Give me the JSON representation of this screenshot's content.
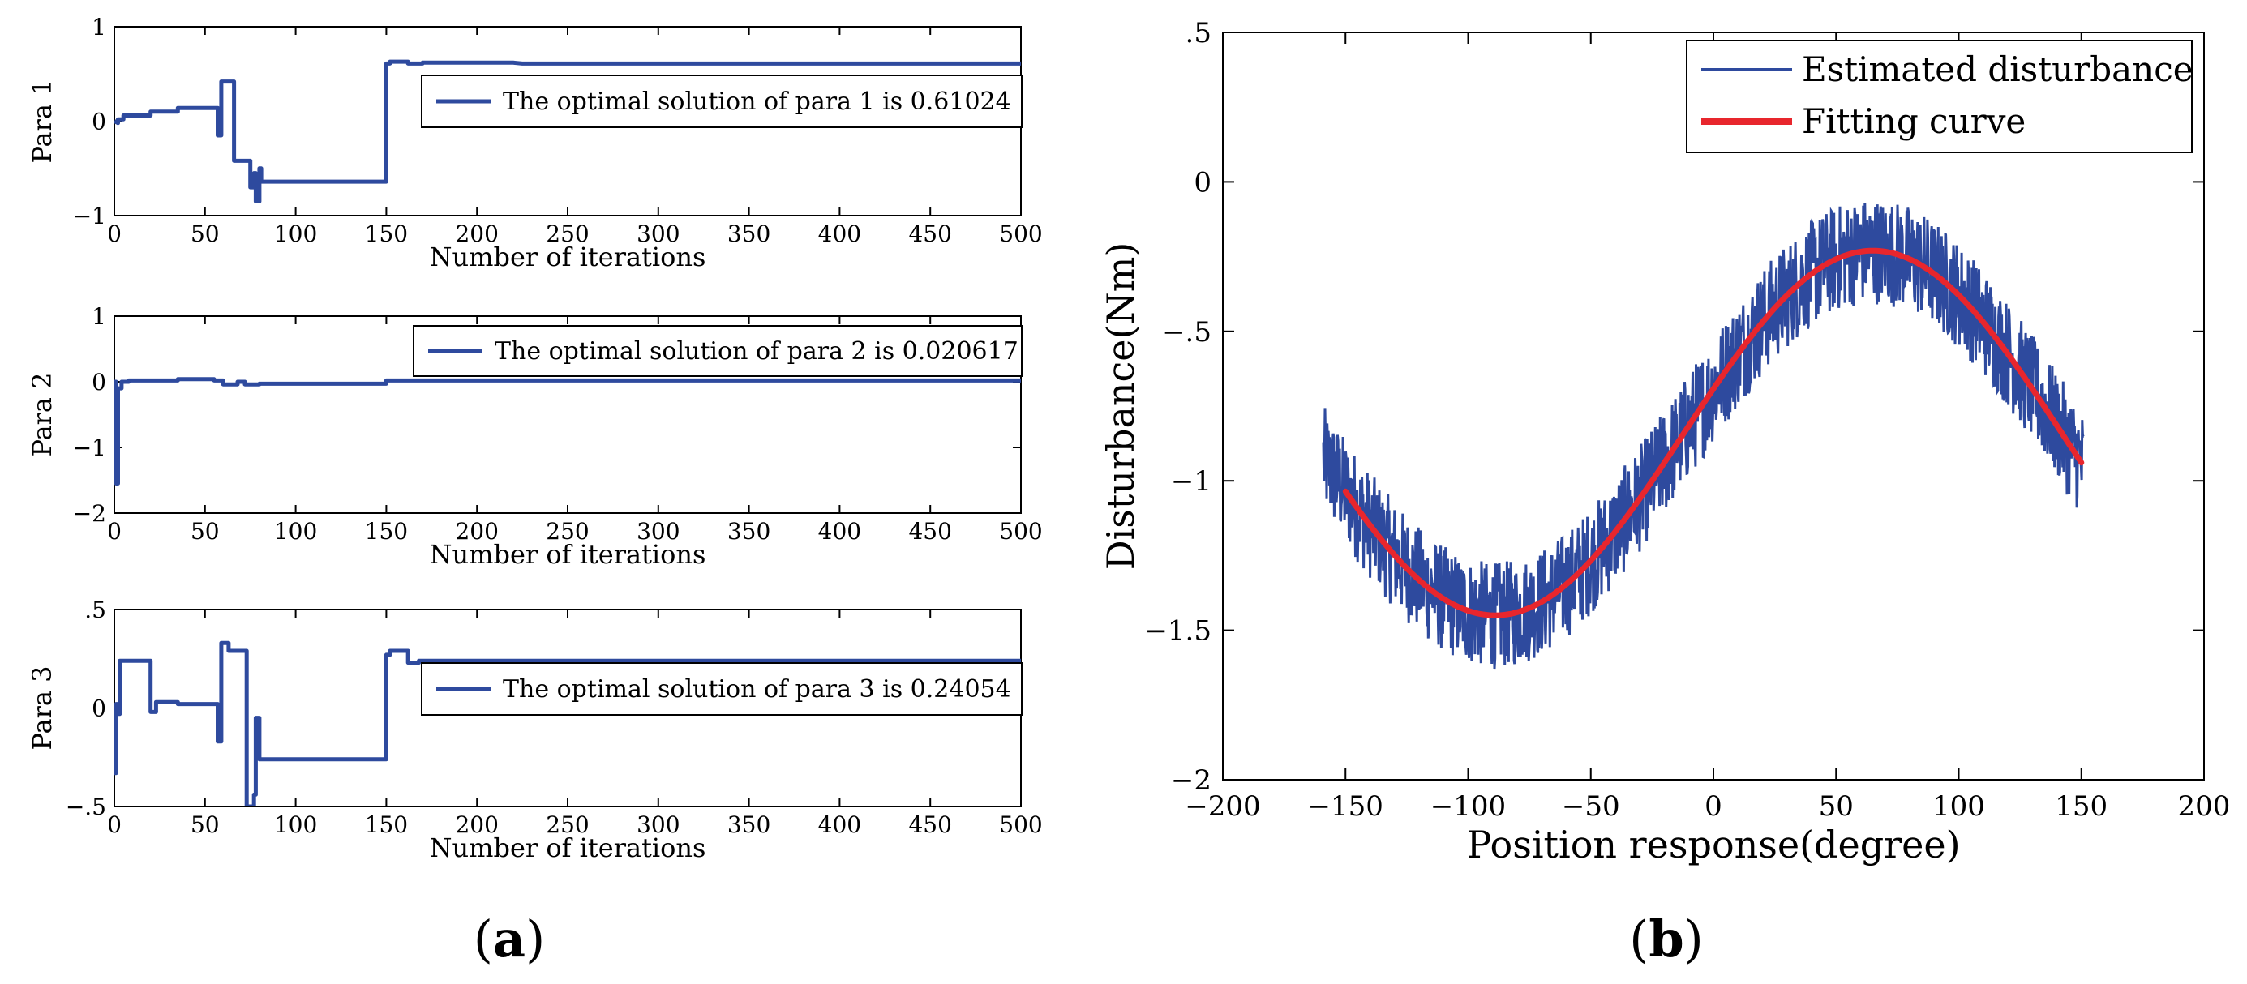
{
  "panels": {
    "a": "a",
    "b": "b"
  },
  "chart_data": [
    {
      "id": "para1",
      "type": "line",
      "ylabel": "Para 1",
      "xlabel": "Number of iterations",
      "xlim": [
        0,
        500
      ],
      "ylim": [
        -1,
        1
      ],
      "xticks": [
        0,
        50,
        100,
        150,
        200,
        250,
        300,
        350,
        400,
        450,
        500
      ],
      "yticks": [
        -1,
        0,
        1
      ],
      "color": "#2e4a9e",
      "legend": "The optimal solution of para 1 is 0.61024",
      "x": [
        0,
        2,
        2,
        5,
        5,
        20,
        20,
        35,
        35,
        57,
        57,
        59,
        59,
        61,
        61,
        66,
        66,
        69,
        69,
        75,
        75,
        77,
        77,
        78,
        78,
        80,
        80,
        81,
        81,
        150,
        150,
        152,
        152,
        162,
        162,
        170,
        170,
        220,
        225,
        500
      ],
      "y": [
        0,
        -0.02,
        0.02,
        0.02,
        0.06,
        0.06,
        0.1,
        0.1,
        0.14,
        0.14,
        -0.15,
        -0.15,
        0.42,
        0.42,
        0.42,
        0.42,
        -0.42,
        -0.42,
        -0.42,
        -0.42,
        -0.7,
        -0.7,
        -0.55,
        -0.55,
        -0.85,
        -0.85,
        -0.5,
        -0.5,
        -0.64,
        -0.64,
        0.61,
        0.61,
        0.63,
        0.63,
        0.61,
        0.61,
        0.62,
        0.62,
        0.61,
        0.61
      ]
    },
    {
      "id": "para2",
      "type": "line",
      "ylabel": "Para 2",
      "xlabel": "Number of iterations",
      "xlim": [
        0,
        500
      ],
      "ylim": [
        -2,
        1
      ],
      "xticks": [
        0,
        50,
        100,
        150,
        200,
        250,
        300,
        350,
        400,
        450,
        500
      ],
      "yticks": [
        -2,
        -1,
        0,
        1
      ],
      "color": "#2e4a9e",
      "legend": "The optimal solution of para 2 is 0.020617",
      "x": [
        0,
        1,
        1,
        2,
        2,
        4,
        4,
        8,
        8,
        35,
        35,
        55,
        55,
        60,
        60,
        68,
        68,
        72,
        72,
        80,
        80,
        150,
        150,
        500
      ],
      "y": [
        0,
        0,
        -1.55,
        -1.55,
        -0.1,
        -0.1,
        0,
        0,
        0.02,
        0.02,
        0.04,
        0.04,
        0.02,
        0.02,
        -0.04,
        -0.04,
        0,
        0,
        -0.04,
        -0.04,
        -0.03,
        -0.03,
        0.02,
        0.02
      ]
    },
    {
      "id": "para3",
      "type": "line",
      "ylabel": "Para 3",
      "xlabel": "Number of iterations",
      "xlim": [
        0,
        500
      ],
      "ylim": [
        -0.5,
        0.5
      ],
      "xticks": [
        0,
        50,
        100,
        150,
        200,
        250,
        300,
        350,
        400,
        450,
        500
      ],
      "yticks": [
        -0.5,
        0,
        0.5
      ],
      "color": "#2e4a9e",
      "legend": "The optimal solution of para 3 is 0.24054",
      "x": [
        0,
        1,
        1,
        2,
        2,
        3,
        3,
        7,
        7,
        20,
        20,
        23,
        23,
        35,
        35,
        57,
        57,
        59,
        59,
        63,
        63,
        66,
        66,
        73,
        73,
        75,
        75,
        77,
        77,
        78,
        78,
        80,
        80,
        81,
        81,
        150,
        150,
        152,
        152,
        162,
        162,
        168,
        168,
        200,
        200,
        500
      ],
      "y": [
        -0.33,
        -0.33,
        0.02,
        0.02,
        -0.03,
        -0.03,
        0.24,
        0.24,
        0.24,
        0.24,
        -0.02,
        -0.02,
        0.03,
        0.03,
        0.02,
        0.02,
        -0.17,
        -0.17,
        0.33,
        0.33,
        0.29,
        0.29,
        0.29,
        0.29,
        -0.5,
        -0.5,
        -0.5,
        -0.5,
        -0.44,
        -0.44,
        -0.05,
        -0.05,
        -0.26,
        -0.26,
        -0.26,
        -0.26,
        0.27,
        0.27,
        0.29,
        0.29,
        0.23,
        0.23,
        0.24,
        0.24,
        0.24,
        0.24
      ]
    },
    {
      "id": "disturbance",
      "type": "line",
      "xlabel": "Position response(degree)",
      "ylabel": "Disturbance(Nm)",
      "xlim": [
        -200,
        200
      ],
      "ylim": [
        -2,
        0.5
      ],
      "xticks": [
        -200,
        -150,
        -100,
        -50,
        0,
        50,
        100,
        150,
        200
      ],
      "yticks": [
        -2,
        -1.5,
        -1,
        -0.5,
        0,
        0.5
      ],
      "series": [
        {
          "name": "Estimated disturbance",
          "color": "#2e4a9e",
          "kind": "noisy",
          "x_range": [
            -159,
            151
          ],
          "base": {
            "offset": -0.84,
            "amplitude": 0.61,
            "center_deg": -12,
            "period_deg": 308
          },
          "noise_amplitude": 0.18
        },
        {
          "name": "Fitting curve",
          "color": "#e8262d",
          "kind": "fit",
          "x_range": [
            -150,
            150
          ],
          "base": {
            "offset": -0.84,
            "amplitude": 0.61,
            "center_deg": -12,
            "period_deg": 308
          }
        }
      ],
      "legend_position": "top-right"
    }
  ]
}
